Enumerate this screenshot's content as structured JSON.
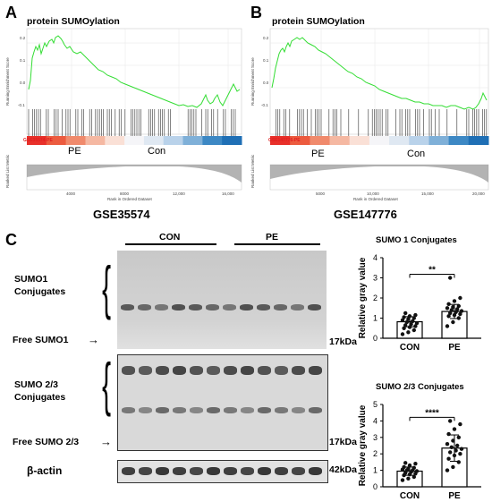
{
  "panels": {
    "a": {
      "letter": "A",
      "title": "protein SUMOylation",
      "ylabel_top": "Running Enrichment Score",
      "ylabel_bottom": "Ranked List Metric",
      "xlabel": "Rank in Ordered Dataset",
      "tag": "GSE35574-PE",
      "pe_label": "PE",
      "con_label": "Con",
      "dataset": "GSE35574",
      "yticks": [
        "0.2",
        "0.1",
        "0.0",
        "-0.1"
      ],
      "xticks": [
        "4000",
        "8000",
        "12,000",
        "16,000"
      ]
    },
    "b": {
      "letter": "B",
      "title": "protein SUMOylation",
      "ylabel_top": "Running Enrichment Score",
      "ylabel_bottom": "Ranked List Metric",
      "xlabel": "Rank in Ordered Dataset",
      "tag": "GSE147776-PE",
      "pe_label": "PE",
      "con_label": "Con",
      "dataset": "GSE147776",
      "yticks": [
        "0.2",
        "0.1",
        "0.0",
        "-0.1"
      ],
      "xticks": [
        "5000",
        "10,000",
        "15,000",
        "20,000"
      ]
    },
    "c": {
      "letter": "C",
      "group_con": "CON",
      "group_pe": "PE",
      "sumo1_label_line1": "SUMO1",
      "sumo1_label_line2": "Conjugates",
      "free_sumo1": "Free SUMO1",
      "sumo23_label_line1": "SUMO 2/3",
      "sumo23_label_line2": "Conjugates",
      "free_sumo23": "Free SUMO 2/3",
      "actin": "β-actin",
      "kda1": "17kDa",
      "kda2": "17kDa",
      "kda3": "42kDa"
    }
  },
  "chart_data": [
    {
      "type": "bar",
      "title": "SUMO 1 Conjugates",
      "ylabel": "Relative gray value",
      "categories": [
        "CON",
        "PE"
      ],
      "values": [
        0.82,
        1.33
      ],
      "errors": [
        0.25,
        0.35
      ],
      "ylim": [
        0,
        4
      ],
      "yticks": [
        "0",
        "1",
        "2",
        "3",
        "4"
      ],
      "significance": "**",
      "points": {
        "CON": [
          0.2,
          0.3,
          0.4,
          0.5,
          0.55,
          0.6,
          0.65,
          0.7,
          0.75,
          0.8,
          0.85,
          0.9,
          0.95,
          1.0,
          1.05,
          1.1,
          1.15,
          1.25
        ],
        "PE": [
          0.6,
          0.8,
          1.0,
          1.1,
          1.15,
          1.2,
          1.25,
          1.3,
          1.35,
          1.4,
          1.45,
          1.5,
          1.55,
          1.6,
          1.7,
          1.85,
          2.0,
          3.0
        ]
      }
    },
    {
      "type": "bar",
      "title": "SUMO 2/3 Conjugates",
      "ylabel": "Relative gray value",
      "categories": [
        "CON",
        "PE"
      ],
      "values": [
        0.95,
        2.35
      ],
      "errors": [
        0.25,
        0.8
      ],
      "ylim": [
        0,
        5
      ],
      "yticks": [
        "0",
        "1",
        "2",
        "3",
        "4",
        "5"
      ],
      "significance": "****",
      "points": {
        "CON": [
          0.4,
          0.5,
          0.6,
          0.7,
          0.75,
          0.8,
          0.85,
          0.9,
          0.95,
          1.0,
          1.0,
          1.05,
          1.1,
          1.15,
          1.2,
          1.3,
          1.4,
          1.45
        ],
        "PE": [
          1.0,
          1.2,
          1.5,
          1.7,
          1.9,
          2.0,
          2.1,
          2.2,
          2.3,
          2.4,
          2.5,
          2.6,
          2.8,
          3.0,
          3.2,
          3.5,
          3.8,
          4.0
        ]
      }
    }
  ]
}
